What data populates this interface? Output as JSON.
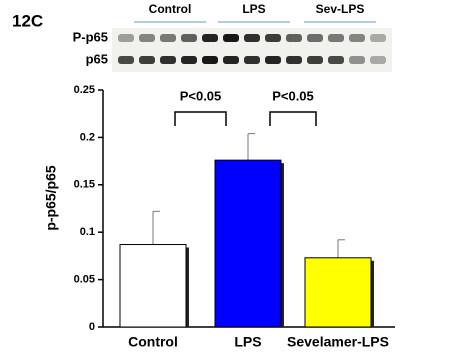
{
  "figure_label": "12C",
  "blot": {
    "groups": [
      "Control",
      "LPS",
      "Sev-LPS"
    ],
    "rows": [
      "P-p65",
      "p65"
    ]
  },
  "chart_data": {
    "type": "bar",
    "y_label": "p-p65/p65",
    "categories": [
      "Control",
      "LPS",
      "Sevelamer-LPS"
    ],
    "values": [
      0.087,
      0.176,
      0.073
    ],
    "errors": [
      0.035,
      0.028,
      0.019
    ],
    "colors": [
      "#ffffff",
      "#0000ff",
      "#ffff00"
    ],
    "ylim": [
      0,
      0.25
    ],
    "yticks": [
      0,
      0.05,
      0.1,
      0.15,
      0.2,
      0.25
    ],
    "annotations": [
      "P<0.05",
      "P<0.05"
    ]
  }
}
